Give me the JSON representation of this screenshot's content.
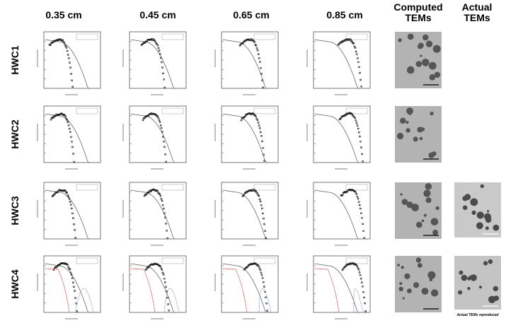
{
  "columns": [
    "0.35 cm",
    "0.45 cm",
    "0.65 cm",
    "0.85 cm",
    "Computed\nTEMs",
    "Actual\nTEMs"
  ],
  "rows": [
    "HWC1",
    "HWC2",
    "HWC3",
    "HWC4"
  ],
  "caption": "Actual TEMs reproduced"
}
